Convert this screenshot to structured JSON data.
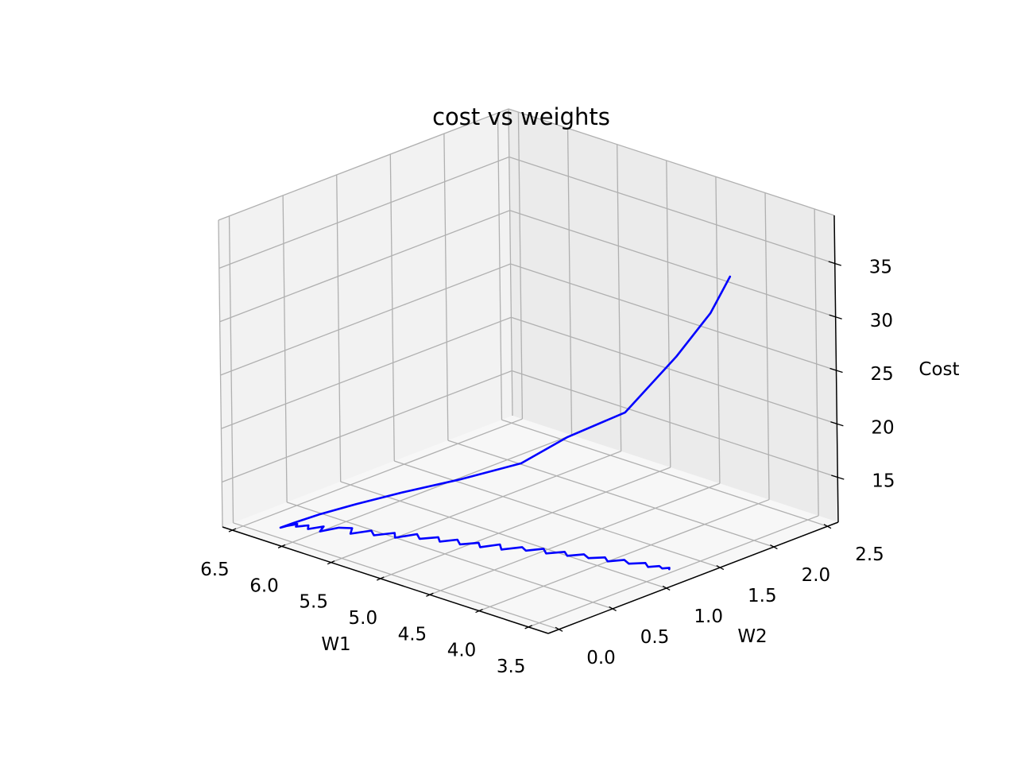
{
  "chart_data": {
    "type": "line",
    "projection": "3d",
    "title": "cost vs weights",
    "xlabel": "W1",
    "ylabel": "W2",
    "zlabel": "Cost",
    "xlim": [
      3.3,
      6.6
    ],
    "ylim": [
      -0.1,
      2.6
    ],
    "zlim": [
      10.8,
      39.5
    ],
    "xticks": [
      "3.5",
      "4.0",
      "4.5",
      "5.0",
      "5.5",
      "6.0",
      "6.5"
    ],
    "yticks": [
      "0.0",
      "0.5",
      "1.0",
      "1.5",
      "2.0",
      "2.5"
    ],
    "zticks": [
      "15",
      "20",
      "25",
      "30",
      "35"
    ],
    "grid": true,
    "colors": {
      "line": "#0000ff",
      "pane_back": "#ebebeb",
      "pane_side": "#f2f2f2",
      "pane_floor": "#f7f7f7",
      "grid": "#b0b0b0"
    },
    "series": [
      {
        "x": [
          3.38,
          3.55,
          3.85,
          4.3,
          4.8,
          5.2,
          5.55,
          5.8,
          5.95,
          6.05,
          6.1,
          6.12,
          6.11,
          6.08,
          6.05,
          6.0,
          5.95,
          5.9,
          5.85,
          5.8,
          5.72,
          5.65,
          5.58,
          5.5,
          5.42,
          5.35,
          5.28,
          5.2,
          5.12,
          5.05,
          4.98,
          4.9,
          4.82,
          4.75,
          4.68,
          4.6,
          4.52,
          4.45,
          4.38,
          4.3,
          4.22,
          4.15,
          4.08,
          4.0,
          3.92,
          3.85,
          3.78,
          3.7,
          3.62,
          3.55,
          3.5,
          3.45,
          3.42,
          3.4
        ],
        "y": [
          1.7,
          1.67,
          1.62,
          1.55,
          1.47,
          1.4,
          1.15,
          0.85,
          0.55,
          0.3,
          0.1,
          0.0,
          0.05,
          0.12,
          0.08,
          0.15,
          0.1,
          0.2,
          0.12,
          0.25,
          0.3,
          0.22,
          0.35,
          0.3,
          0.42,
          0.36,
          0.5,
          0.45,
          0.55,
          0.5,
          0.6,
          0.55,
          0.65,
          0.6,
          0.72,
          0.66,
          0.78,
          0.75,
          0.85,
          0.8,
          0.9,
          0.86,
          0.95,
          0.92,
          1.0,
          0.96,
          1.05,
          1.02,
          1.1,
          1.06,
          1.12,
          1.1,
          1.14,
          1.12
        ],
        "z": [
          37.0,
          33.2,
          28.4,
          22.1,
          18.6,
          15.2,
          13.6,
          12.8,
          12.4,
          12.1,
          11.9,
          11.8,
          11.8,
          11.8,
          11.8,
          11.8,
          11.8,
          11.8,
          11.8,
          11.8,
          11.8,
          11.8,
          11.8,
          11.8,
          11.8,
          11.8,
          11.8,
          11.8,
          11.8,
          11.8,
          11.8,
          11.8,
          11.8,
          11.8,
          11.8,
          11.8,
          11.8,
          11.8,
          11.8,
          11.8,
          11.8,
          11.8,
          11.8,
          11.8,
          11.8,
          11.8,
          11.8,
          11.8,
          11.8,
          11.8,
          11.8,
          11.8,
          11.8,
          11.8
        ]
      }
    ]
  }
}
